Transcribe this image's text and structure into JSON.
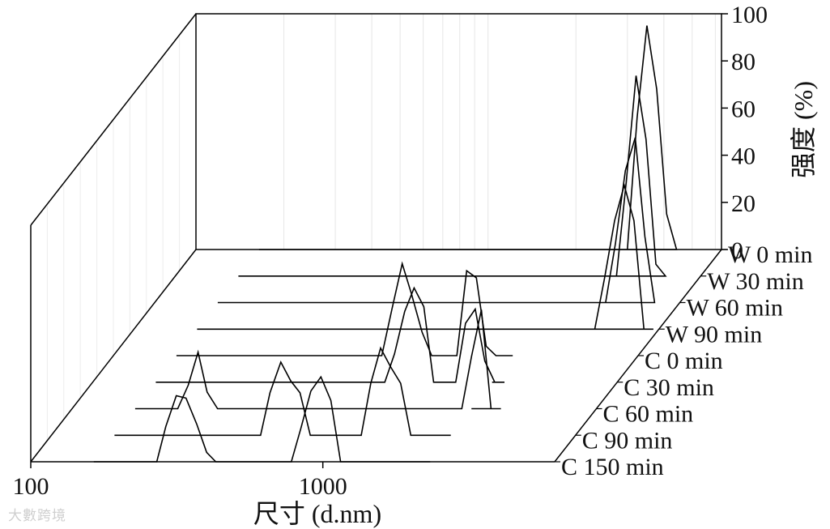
{
  "watermark": "大數跨境",
  "chart_data": {
    "type": "line",
    "subtype": "waterfall-3d",
    "xlabel": "尺寸 (d.nm)",
    "ylabel": "强度 (%)",
    "x_scale": "log",
    "xlim": [
      100,
      6300
    ],
    "x_ticks": [
      "100",
      "1000"
    ],
    "ylim": [
      0,
      100
    ],
    "y_ticks": [
      "0",
      "20",
      "40",
      "60",
      "80",
      "100"
    ],
    "grid": true,
    "series": [
      {
        "name": "W 0 min",
        "x": [
          3000,
          3240,
          3500,
          3780,
          4090,
          4420
        ],
        "y": [
          0,
          56,
          95,
          68,
          15,
          0
        ]
      },
      {
        "name": "W 30 min",
        "x": [
          3240,
          3500,
          3780,
          4090,
          4420,
          4770
        ],
        "y": [
          0,
          40,
          85,
          58,
          5,
          0
        ]
      },
      {
        "name": "W 60 min",
        "x": [
          3500,
          3780,
          4090,
          4420,
          4770,
          5150
        ],
        "y": [
          0,
          25,
          56,
          70,
          28,
          0
        ]
      },
      {
        "name": "W 90 min",
        "x": [
          3780,
          4090,
          4420,
          4770,
          5150,
          5570,
          6000
        ],
        "y": [
          0,
          22,
          46,
          61,
          46,
          0,
          0
        ]
      },
      {
        "name": "C 0 min",
        "x": [
          1500,
          1620,
          1750,
          1890,
          2040,
          2200
        ],
        "y": [
          0,
          36,
          33,
          4,
          0,
          0
        ]
      },
      {
        "name": "C 30 min",
        "x": [
          1750,
          1890,
          2040,
          2200,
          2380,
          2570
        ],
        "y": [
          0,
          25,
          31,
          9,
          0,
          0
        ]
      },
      {
        "name": "C 60 min",
        "x": [
          2000,
          2160,
          2330,
          2520,
          2720,
          2940
        ],
        "y": [
          0,
          0,
          22,
          42,
          0,
          0
        ]
      },
      {
        "name": "C 90 min",
        "x": [
          520,
          560,
          610,
          660,
          710,
          770,
          830
        ],
        "y": [
          0,
          18,
          31,
          23,
          18,
          0,
          0
        ]
      },
      {
        "name": "C 150 min",
        "x": [
          270,
          290,
          315,
          340,
          370,
          400,
          430,
          465
        ],
        "y": [
          0,
          15,
          28,
          27,
          16,
          4,
          0,
          0
        ]
      }
    ],
    "secondary_peaks": [
      {
        "series": "C 0 min",
        "x": [
          830,
          900,
          975,
          1050,
          1140,
          1230,
          1330
        ],
        "y": [
          0,
          20,
          39,
          26,
          10,
          0,
          0
        ]
      },
      {
        "series": "C 30 min",
        "x": [
          1000,
          1080,
          1170,
          1260,
          1360,
          1470,
          1590
        ],
        "y": [
          0,
          12,
          30,
          40,
          32,
          0,
          0
        ]
      },
      {
        "series": "C 60 min",
        "x": [
          230,
          250,
          270,
          290,
          315,
          340
        ],
        "y": [
          0,
          10,
          24,
          7,
          0,
          0
        ]
      },
      {
        "series": "C 90 min",
        "x": [
          1150,
          1240,
          1340,
          1450,
          1570,
          1700,
          1830
        ],
        "y": [
          0,
          22,
          37,
          29,
          22,
          0,
          0
        ]
      },
      {
        "series": "C 150 min",
        "x": [
          780,
          840,
          910,
          985,
          1065,
          1150,
          1240
        ],
        "y": [
          0,
          14,
          30,
          36,
          26,
          0,
          0
        ]
      }
    ]
  }
}
